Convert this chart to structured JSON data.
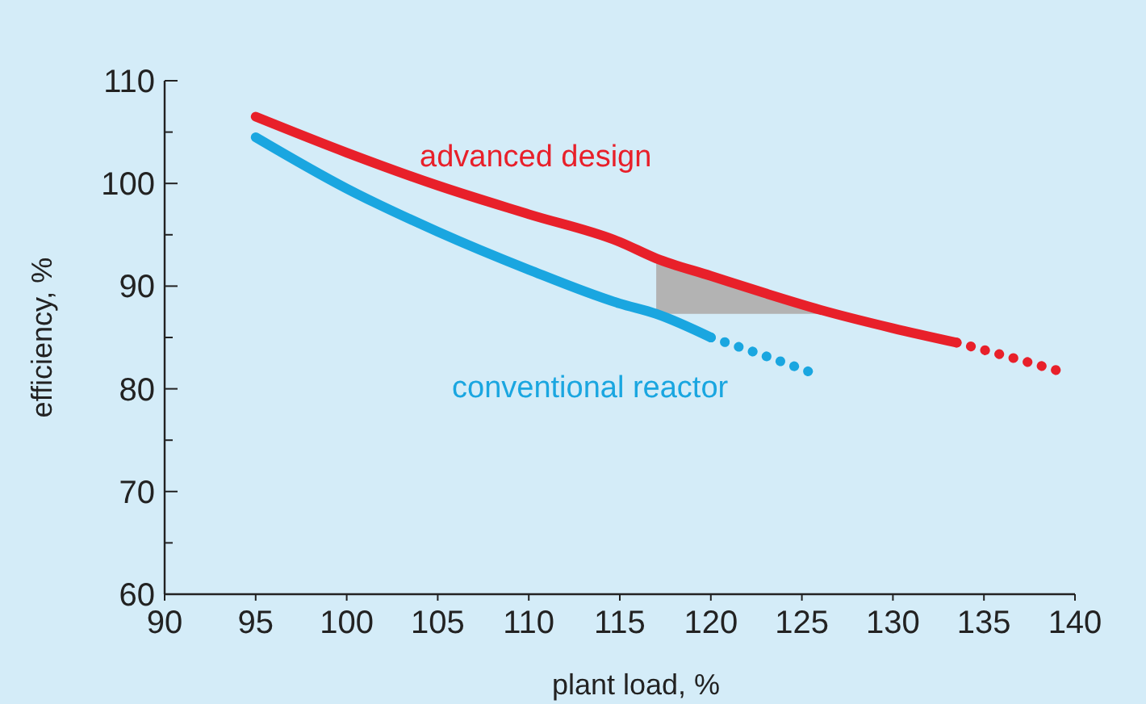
{
  "chart_data": {
    "type": "line",
    "xlabel": "plant load, %",
    "ylabel": "efficiency, %",
    "xlim": [
      90,
      140
    ],
    "xticks": [
      90,
      95,
      100,
      105,
      110,
      115,
      120,
      125,
      130,
      135,
      140
    ],
    "ylim": [
      60,
      110
    ],
    "yticks": [
      60,
      {
        "value": 65,
        "label": null
      },
      70,
      {
        "value": 75,
        "label": null
      },
      80,
      {
        "value": 85,
        "label": null
      },
      90,
      {
        "value": 95,
        "label": null
      },
      100,
      {
        "value": 105,
        "label": null
      },
      110
    ],
    "grid": false,
    "legend": false,
    "marker": "none",
    "series": [
      {
        "name": "advanced design",
        "color": "#e8202a",
        "line_style": "solid",
        "x": [
          95,
          100,
          105,
          110,
          115,
          117,
          120,
          123,
          126,
          130,
          133.5
        ],
        "values": [
          106.5,
          103,
          99.8,
          97,
          94.3,
          92.7,
          91,
          89.3,
          87.7,
          85.9,
          84.5
        ],
        "lower": [
          null,
          null,
          null,
          null,
          null,
          87.3,
          87.3,
          87.3,
          87.3,
          null,
          null
        ],
        "upper": [
          null,
          null,
          null,
          null,
          null,
          92.7,
          91,
          89.3,
          87.7,
          null,
          null
        ]
      },
      {
        "name": "conventional reactor",
        "color": "#1aa6e0",
        "line_style": "solid",
        "x": [
          95,
          100,
          105,
          110,
          115,
          117,
          120
        ],
        "values": [
          104.5,
          99.5,
          95.3,
          91.6,
          88.3,
          87.3,
          85
        ]
      },
      {
        "color": "#e8202a",
        "line_style": "dotted",
        "x": [
          133.5,
          136,
          139
        ],
        "values": [
          84.5,
          83.3,
          81.8
        ]
      },
      {
        "color": "#1aa6e0",
        "line_style": "dotted",
        "x": [
          120,
          123,
          125.5
        ],
        "values": [
          85,
          83.2,
          81.6
        ]
      }
    ]
  }
}
